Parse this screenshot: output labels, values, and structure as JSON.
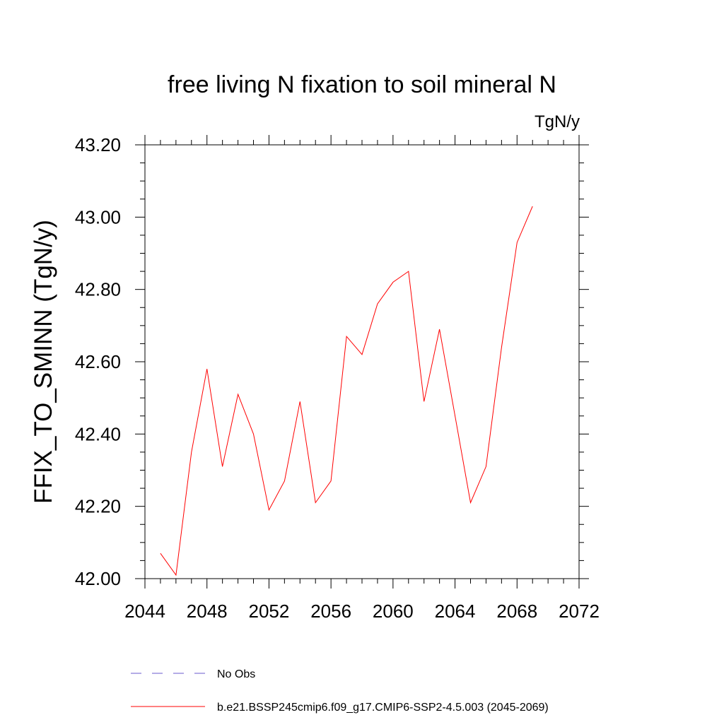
{
  "chart_data": {
    "type": "line",
    "title": "free living N fixation to soil mineral N",
    "units_label": "TgN/y",
    "ylabel": "FFIX_TO_SMINN  (TgN/y)",
    "xlabel": "",
    "xlim": [
      2044,
      2072
    ],
    "ylim": [
      42.0,
      43.2
    ],
    "x_ticks": [
      2044,
      2048,
      2052,
      2056,
      2060,
      2064,
      2068,
      2072
    ],
    "x_tick_labels": [
      "2044",
      "2048",
      "2052",
      "2056",
      "2060",
      "2064",
      "2068",
      "2072"
    ],
    "y_ticks": [
      42.0,
      42.2,
      42.4,
      42.6,
      42.8,
      43.0,
      43.2
    ],
    "y_tick_labels": [
      "42.00",
      "42.20",
      "42.40",
      "42.60",
      "42.80",
      "43.00",
      "43.20"
    ],
    "grid": false,
    "legend_position": "bottom",
    "series": [
      {
        "name": "b.e21.BSSP245cmip6.f09_g17.CMIP6-SSP2-4.5.003 (2045-2069)",
        "color": "#ff0000",
        "dash": "solid",
        "x": [
          2045,
          2046,
          2047,
          2048,
          2049,
          2050,
          2051,
          2052,
          2053,
          2054,
          2055,
          2056,
          2057,
          2058,
          2059,
          2060,
          2061,
          2062,
          2063,
          2064,
          2065,
          2066,
          2067,
          2068,
          2069
        ],
        "values": [
          42.07,
          42.01,
          42.35,
          42.58,
          42.31,
          42.51,
          42.4,
          42.19,
          42.27,
          42.49,
          42.21,
          42.27,
          42.67,
          42.62,
          42.76,
          42.82,
          42.85,
          42.49,
          42.69,
          42.45,
          42.21,
          42.31,
          42.64,
          42.93,
          43.03
        ]
      }
    ],
    "legend": [
      {
        "label": "No Obs",
        "color": "#6a5acd",
        "dash": "dashed"
      },
      {
        "label": "b.e21.BSSP245cmip6.f09_g17.CMIP6-SSP2-4.5.003 (2045-2069)",
        "color": "#ff0000",
        "dash": "solid"
      }
    ]
  }
}
